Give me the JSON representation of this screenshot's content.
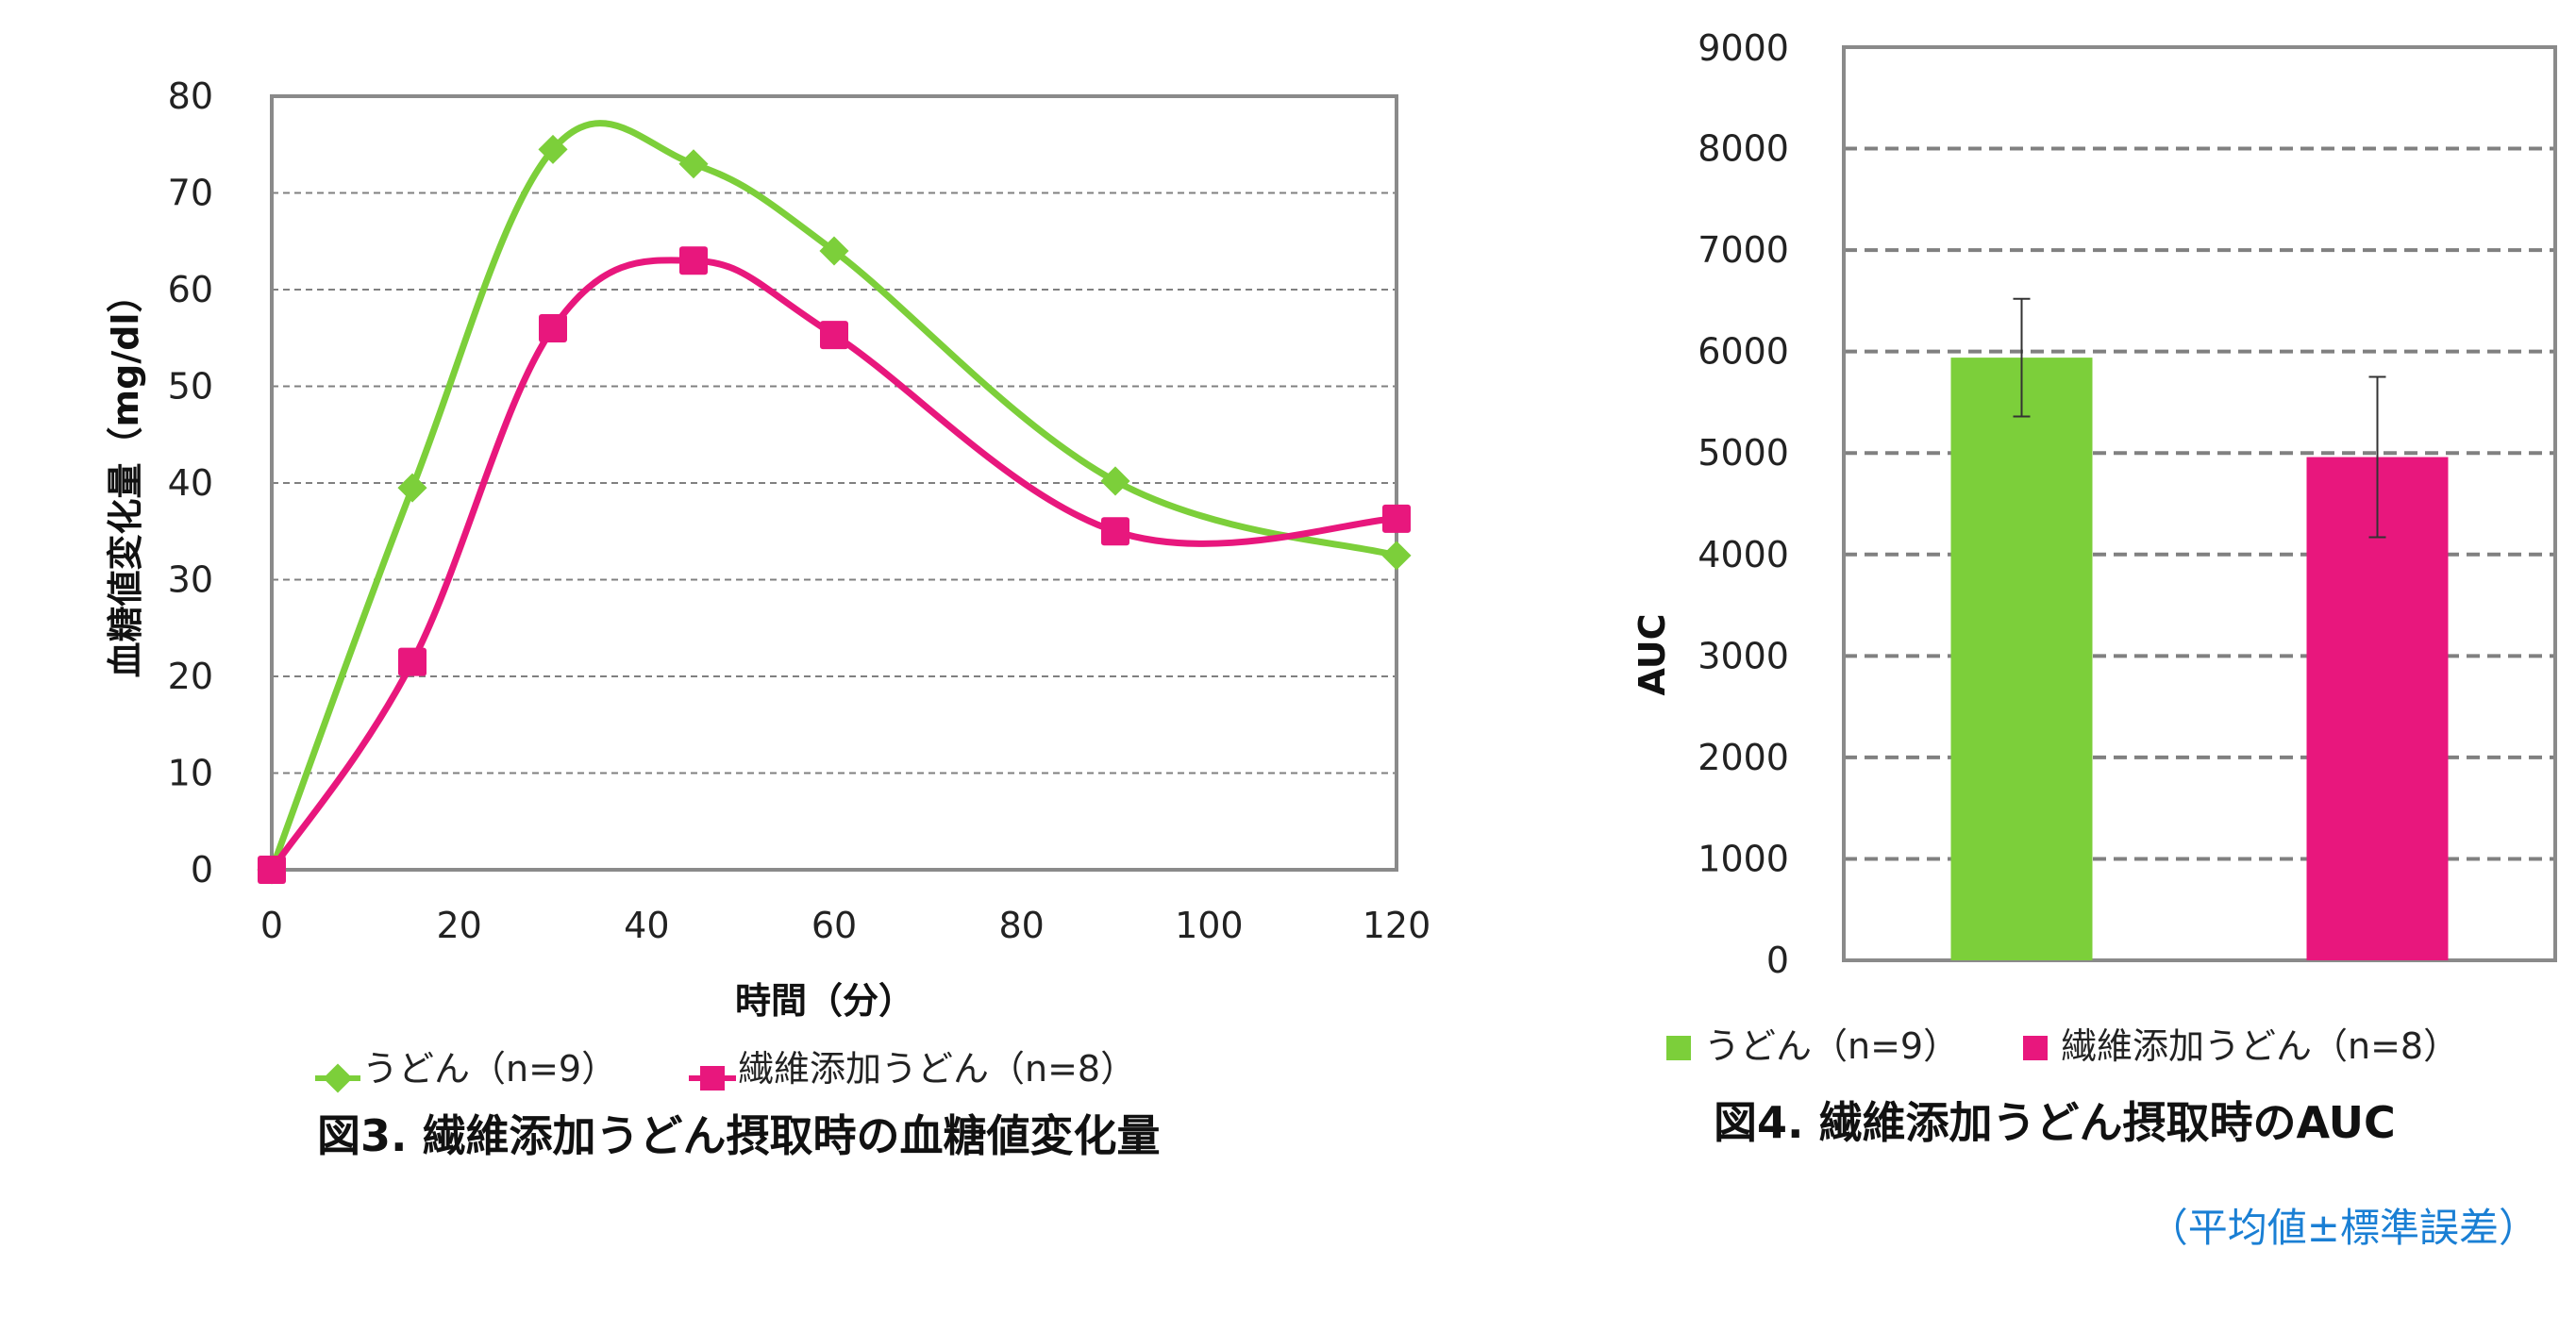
{
  "colors": {
    "udon": "#7ccf3a",
    "fiber": "#e8177d",
    "frame": "#8a8a8a",
    "grid": "#808080",
    "note": "#1a7fd4"
  },
  "chart_data": [
    {
      "type": "line",
      "caption": "図3. 繊維添加うどん摂取時の血糖値変化量",
      "xlabel": "時間（分）",
      "ylabel": "血糖値変化量（mg/dl）",
      "xlim": [
        0,
        120
      ],
      "ylim": [
        0,
        80
      ],
      "x_ticks": [
        "0",
        "20",
        "40",
        "60",
        "80",
        "100",
        "120"
      ],
      "y_ticks": [
        "0",
        "10",
        "20",
        "30",
        "40",
        "50",
        "60",
        "70",
        "80"
      ],
      "grid": true,
      "legend_position": "bottom",
      "series": [
        {
          "name": "うどん（n=9）",
          "marker": "diamond",
          "color": "#7ccf3a",
          "x": [
            0,
            15,
            30,
            45,
            60,
            90,
            120
          ],
          "y": [
            0,
            39.5,
            74.5,
            73,
            64,
            40.2,
            32.5
          ]
        },
        {
          "name": "繊維添加うどん（n=8）",
          "marker": "square",
          "color": "#e8177d",
          "x": [
            0,
            15,
            30,
            45,
            60,
            90,
            120
          ],
          "y": [
            0,
            21.5,
            56,
            63,
            55.3,
            35,
            36.3
          ]
        }
      ]
    },
    {
      "type": "bar",
      "caption": "図4. 繊維添加うどん摂取時のAUC",
      "ylabel": "AUC",
      "ylim": [
        0,
        9000
      ],
      "y_ticks": [
        "0",
        "1000",
        "2000",
        "3000",
        "4000",
        "5000",
        "6000",
        "7000",
        "8000",
        "9000"
      ],
      "grid": true,
      "legend_position": "bottom",
      "series": [
        {
          "name": "うどん（n=9）",
          "color": "#7ccf3a",
          "value": 5940,
          "error": 580
        },
        {
          "name": "繊維添加うどん（n=8）",
          "color": "#e8177d",
          "value": 4960,
          "error": 790
        }
      ],
      "note": "（平均値±標準誤差）"
    }
  ]
}
